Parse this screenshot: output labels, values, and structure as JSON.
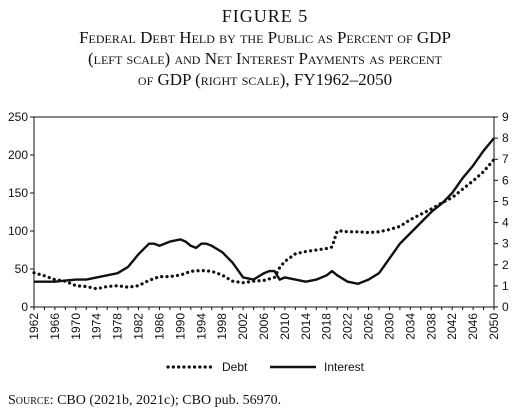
{
  "figure": {
    "number": "FIGURE 5",
    "title_lines": [
      "Federal Debt Held by the Public as Percent of GDP",
      "(left scale) and Net Interest Payments as percent",
      "of GDP (right scale), FY1962–2050"
    ]
  },
  "source": {
    "label": "Source:",
    "text": "CBO (2021b, 2021c); CBO pub. 56970."
  },
  "chart_data": {
    "type": "line",
    "xlim": [
      1962,
      2050
    ],
    "x_ticks": [
      1962,
      1966,
      1970,
      1974,
      1978,
      1982,
      1986,
      1990,
      1994,
      1998,
      2002,
      2006,
      2010,
      2014,
      2018,
      2022,
      2026,
      2030,
      2034,
      2038,
      2042,
      2046,
      2050
    ],
    "y_left": {
      "lim": [
        0,
        250
      ],
      "ticks": [
        0,
        50,
        100,
        150,
        200,
        250
      ]
    },
    "y_right": {
      "lim": [
        0,
        9
      ],
      "ticks": [
        0,
        1,
        2,
        3,
        4,
        5,
        6,
        7,
        8,
        9
      ]
    },
    "grid": false,
    "legend_position": "bottom-center",
    "series": [
      {
        "name": "Debt",
        "axis": "left",
        "style": "dotted",
        "x": [
          1962,
          1964,
          1966,
          1968,
          1970,
          1972,
          1974,
          1976,
          1978,
          1980,
          1982,
          1984,
          1986,
          1988,
          1990,
          1992,
          1994,
          1996,
          1998,
          2000,
          2002,
          2004,
          2006,
          2008,
          2009,
          2010,
          2012,
          2014,
          2016,
          2018,
          2019,
          2020,
          2021,
          2022,
          2024,
          2026,
          2028,
          2030,
          2032,
          2034,
          2036,
          2038,
          2040,
          2042,
          2044,
          2046,
          2048,
          2050
        ],
        "values": [
          45,
          41,
          36,
          34,
          28,
          27,
          24,
          27,
          28,
          26,
          28,
          35,
          40,
          40,
          42,
          47,
          48,
          47,
          42,
          34,
          32,
          34,
          35,
          39,
          52,
          60,
          70,
          73,
          75,
          77,
          79,
          100,
          100,
          99,
          99,
          98,
          99,
          102,
          106,
          115,
          122,
          129,
          137,
          144,
          155,
          166,
          178,
          194
        ]
      },
      {
        "name": "Interest",
        "axis": "right",
        "style": "solid",
        "x": [
          1962,
          1964,
          1966,
          1968,
          1970,
          1972,
          1974,
          1976,
          1978,
          1980,
          1982,
          1984,
          1985,
          1986,
          1988,
          1990,
          1991,
          1992,
          1993,
          1994,
          1995,
          1996,
          1998,
          2000,
          2002,
          2004,
          2006,
          2007,
          2008,
          2009,
          2010,
          2012,
          2014,
          2016,
          2018,
          2019,
          2020,
          2022,
          2024,
          2026,
          2028,
          2030,
          2032,
          2034,
          2036,
          2038,
          2040,
          2042,
          2044,
          2046,
          2048,
          2050
        ],
        "values": [
          1.2,
          1.2,
          1.2,
          1.25,
          1.3,
          1.3,
          1.4,
          1.5,
          1.6,
          1.9,
          2.5,
          3.0,
          3.0,
          2.9,
          3.1,
          3.2,
          3.1,
          2.9,
          2.8,
          3.0,
          3.0,
          2.9,
          2.6,
          2.1,
          1.4,
          1.3,
          1.6,
          1.7,
          1.7,
          1.3,
          1.4,
          1.3,
          1.2,
          1.3,
          1.5,
          1.7,
          1.5,
          1.2,
          1.1,
          1.3,
          1.6,
          2.3,
          3.0,
          3.5,
          4.0,
          4.5,
          4.9,
          5.4,
          6.1,
          6.7,
          7.4,
          8.0
        ]
      }
    ]
  }
}
